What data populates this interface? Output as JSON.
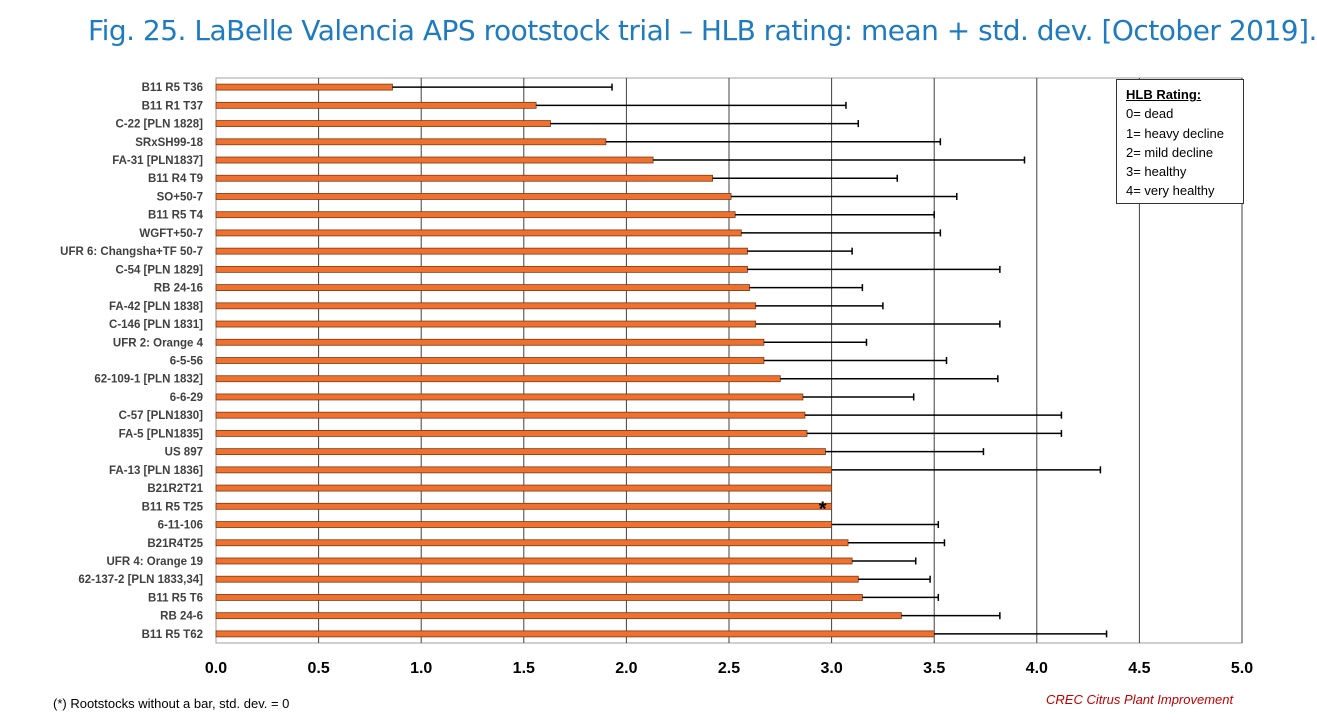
{
  "title": "Fig. 25. LaBelle Valencia APS rootstock trial – HLB rating: mean + std. dev. [October 2019].",
  "legend": {
    "heading": "HLB Rating:",
    "items": [
      "0= dead",
      "1= heavy decline",
      "2= mild decline",
      "3= healthy",
      "4= very healthy"
    ]
  },
  "footnote": "(*) Rootstocks without  a bar, std. dev. = 0",
  "credit": "CREC Citrus Plant Improvement",
  "colors": {
    "bar": "#f07030",
    "bar_edge": "#7a3b12",
    "grid": "#404040",
    "title": "#1f7bbf"
  },
  "chart_data": {
    "type": "bar",
    "orientation": "horizontal",
    "xlim": [
      0,
      5
    ],
    "xticks": [
      "0.0",
      "0.5",
      "1.0",
      "1.5",
      "2.0",
      "2.5",
      "3.0",
      "3.5",
      "4.0",
      "4.5",
      "5.0"
    ],
    "grid": "vertical lines at 0.5 intervals",
    "categories": [
      "B11 R5 T36",
      "B11 R1 T37",
      "C-22 [PLN 1828]",
      "SRxSH99-18",
      "FA-31 [PLN1837]",
      "B11 R4 T9",
      "SO+50-7",
      "B11 R5 T4",
      "WGFT+50-7",
      "UFR 6: Changsha+TF 50-7",
      "C-54 [PLN 1829]",
      "RB 24-16",
      "FA-42 [PLN 1838]",
      "C-146 [PLN 1831]",
      "UFR 2: Orange 4",
      "6-5-56",
      "62-109-1 [PLN 1832]",
      "6-6-29",
      "C-57 [PLN1830]",
      "FA-5 [PLN1835]",
      "US 897",
      "FA-13 [PLN 1836]",
      "B21R2T21",
      "B11 R5 T25",
      "6-11-106",
      "B21R4T25",
      "UFR 4: Orange 19",
      "62-137-2 [PLN 1833,34]",
      "B11 R5 T6",
      "RB 24-6",
      "B11 R5 T62"
    ],
    "values": [
      0.86,
      1.56,
      1.63,
      1.9,
      2.13,
      2.42,
      2.51,
      2.53,
      2.56,
      2.59,
      2.59,
      2.6,
      2.63,
      2.63,
      2.67,
      2.67,
      2.75,
      2.86,
      2.87,
      2.88,
      2.97,
      3.0,
      3.0,
      3.0,
      3.0,
      3.08,
      3.1,
      3.13,
      3.15,
      3.34,
      3.5
    ],
    "std_dev": [
      1.07,
      1.51,
      1.5,
      1.63,
      1.81,
      0.9,
      1.1,
      0.97,
      0.97,
      0.51,
      1.23,
      0.55,
      0.62,
      1.19,
      0.5,
      0.89,
      1.06,
      0.54,
      1.25,
      1.24,
      0.77,
      1.31,
      0.0,
      0.0,
      0.52,
      0.47,
      0.31,
      0.35,
      0.37,
      0.48,
      0.84
    ],
    "annotations": [
      {
        "category": "B11 R5 T25",
        "text": "*"
      }
    ]
  }
}
